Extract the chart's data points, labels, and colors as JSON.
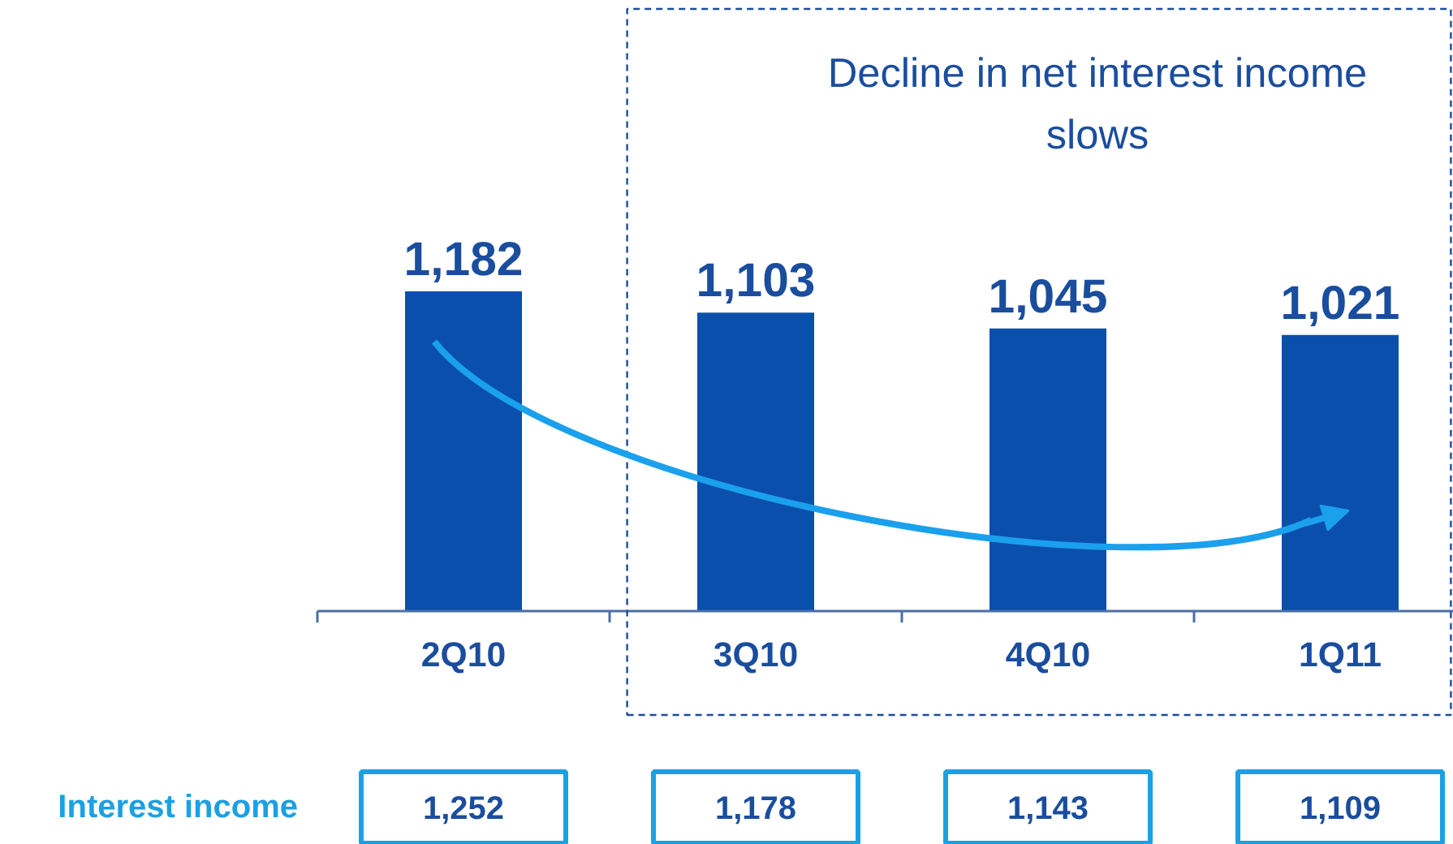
{
  "chart_data": {
    "type": "bar",
    "categories": [
      "2Q10",
      "3Q10",
      "4Q10",
      "1Q11"
    ],
    "values": [
      1182,
      1103,
      1045,
      1021
    ],
    "color": "#0b4fad",
    "value_labels": [
      "1,182",
      "1,103",
      "1,045",
      "1,021"
    ],
    "annotations": [
      "Decline in net interest income slows",
      "Interest income",
      "1,252",
      "1,178",
      "1,143",
      "1,109"
    ]
  }
}
